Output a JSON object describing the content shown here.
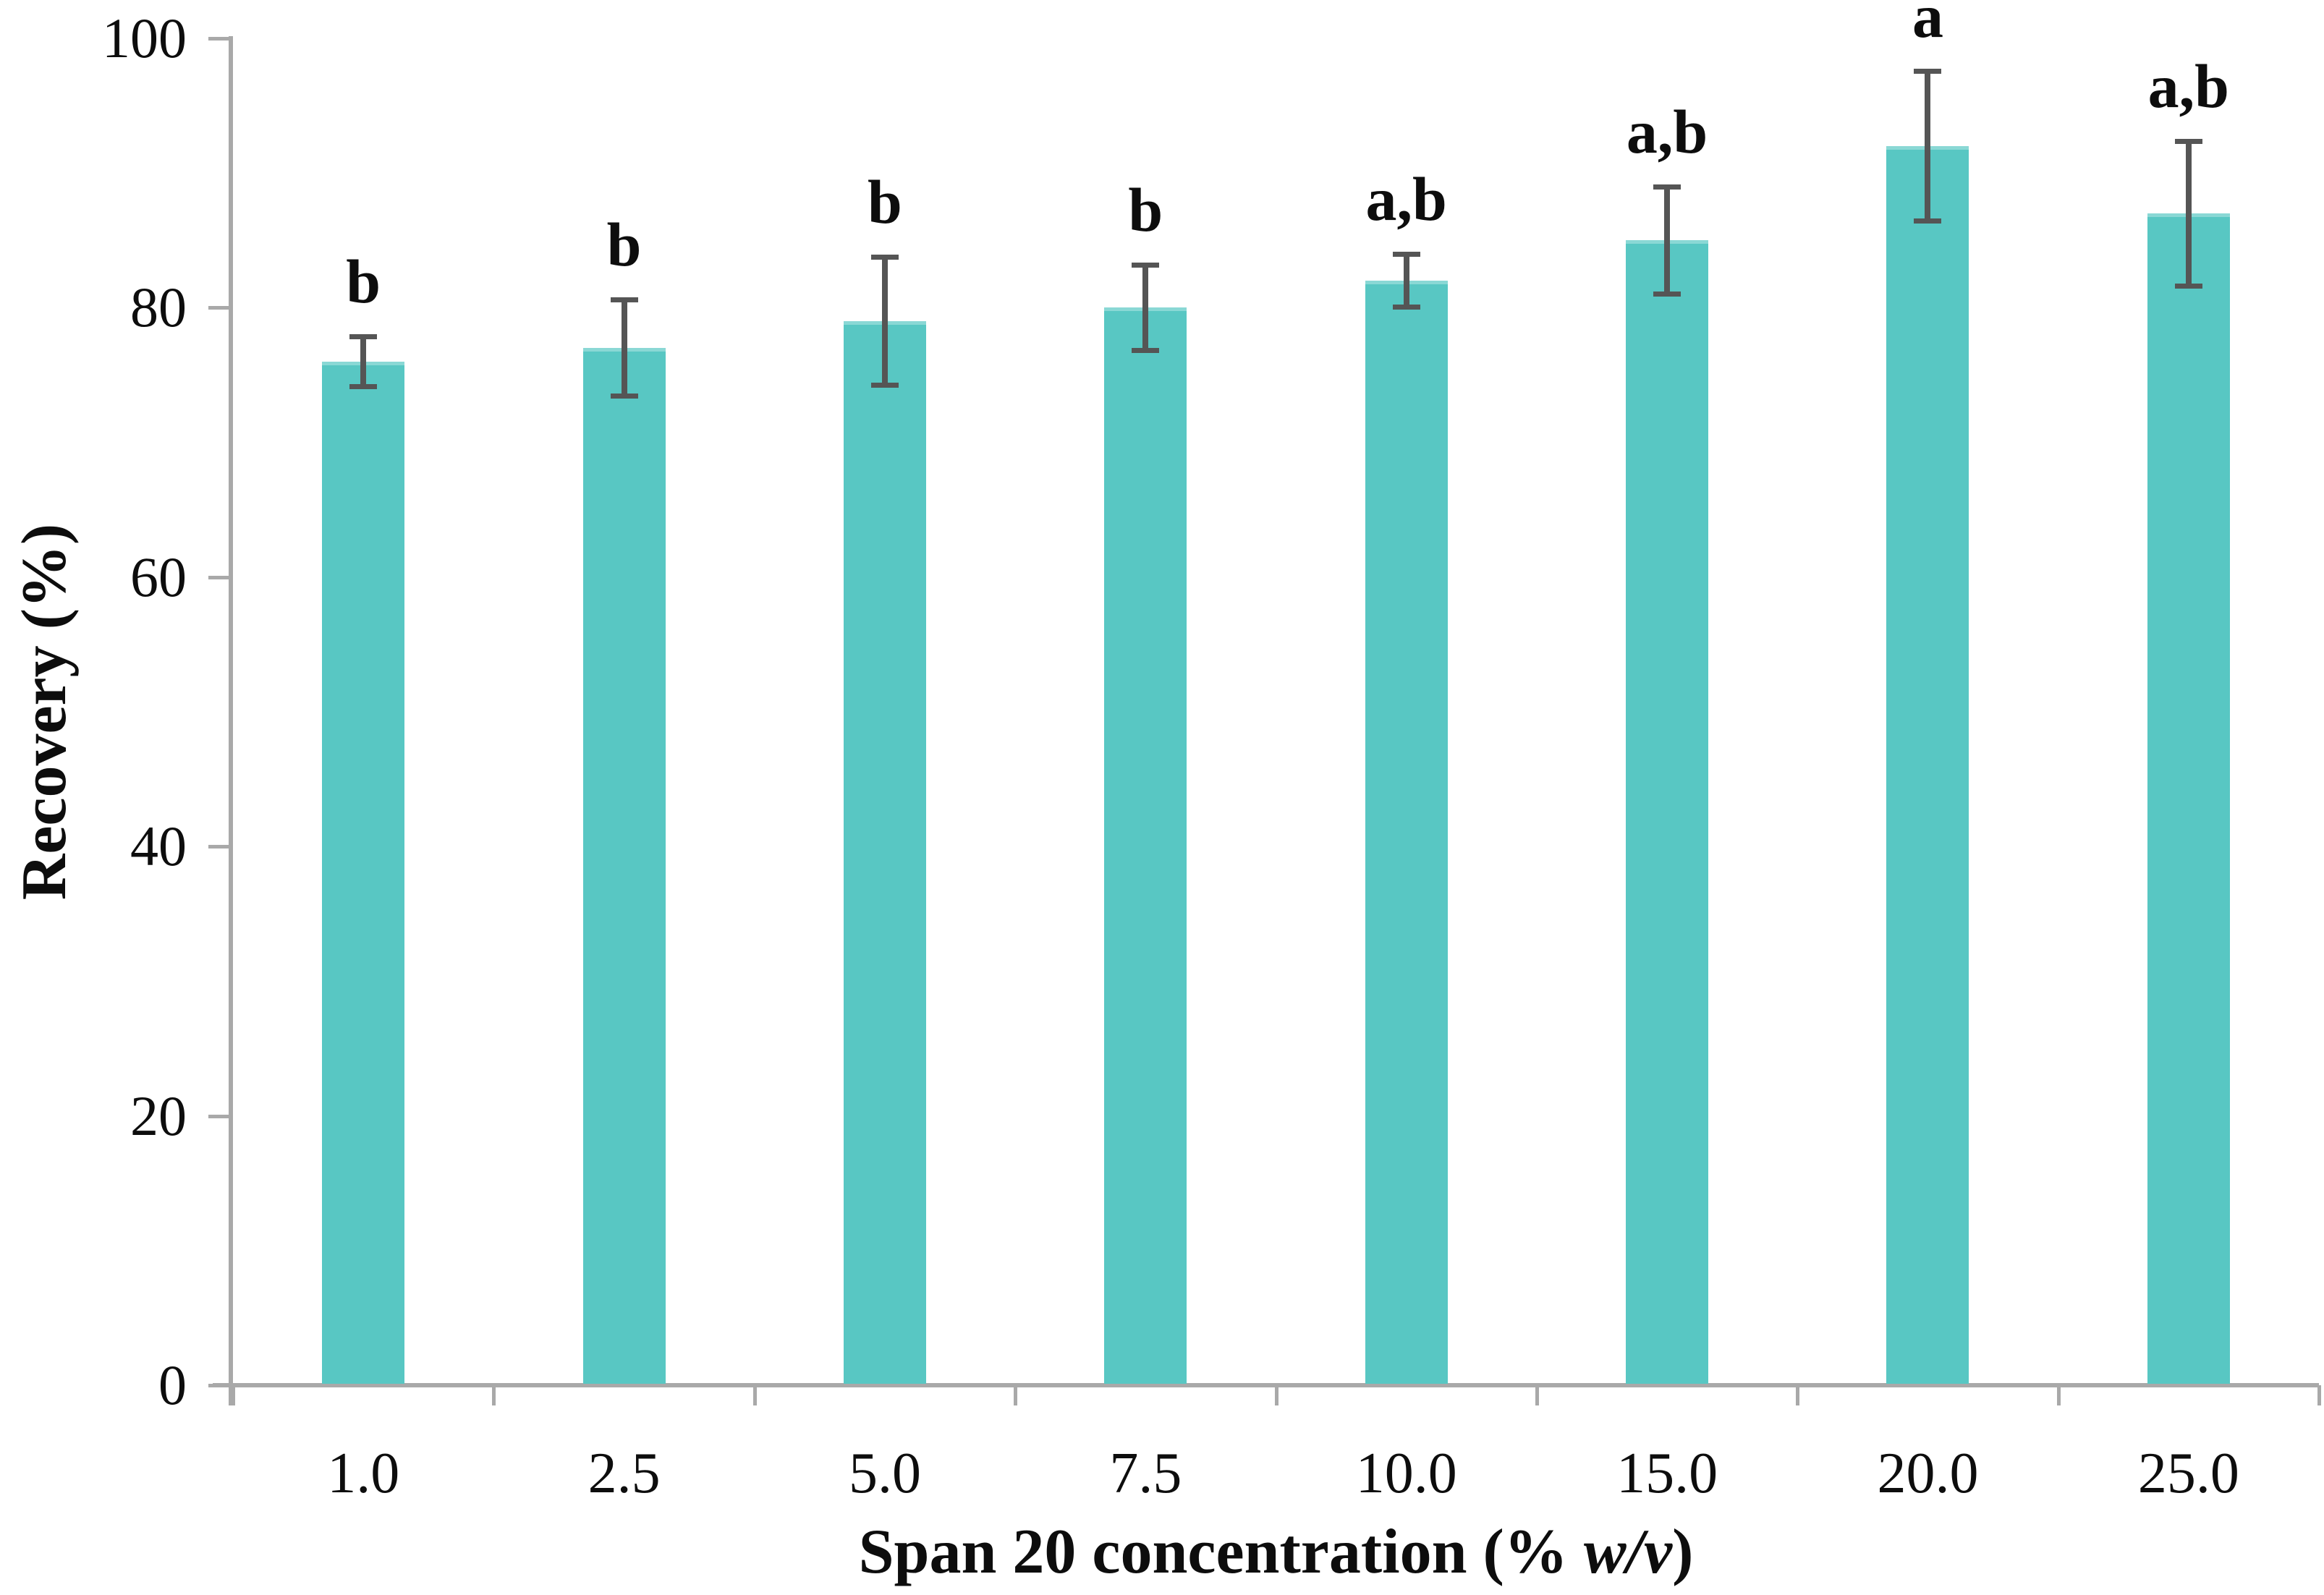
{
  "chart_data": {
    "type": "bar",
    "title": "",
    "xlabel": "Span 20 concentration (% w/v)",
    "xlabel_prefix": "Span 20 concentration (% ",
    "xlabel_italic": "w/v",
    "xlabel_suffix": ")",
    "ylabel": "Recovery (%)",
    "ylim": [
      0,
      100
    ],
    "yticks": [
      0,
      20,
      40,
      60,
      80,
      100
    ],
    "grid": false,
    "legend": null,
    "categories": [
      "1.0",
      "2.5",
      "5.0",
      "7.5",
      "10.0",
      "15.0",
      "20.0",
      "25.0"
    ],
    "values": [
      76,
      77,
      79,
      80,
      82,
      85,
      92,
      87
    ],
    "errors": [
      1.9,
      3.6,
      4.8,
      3.2,
      2.0,
      4.0,
      5.6,
      5.4
    ],
    "significance_labels": [
      "b",
      "b",
      "b",
      "b",
      "a,b",
      "a,b",
      "a",
      "a,b"
    ],
    "colors": {
      "bar_fill": "#58C7C3",
      "bar_top_highlight": "rgba(255,255,255,0.30)",
      "error_bar": "#555555",
      "axis_line": "#A9A9A9",
      "text": "#0d0d0d"
    }
  }
}
